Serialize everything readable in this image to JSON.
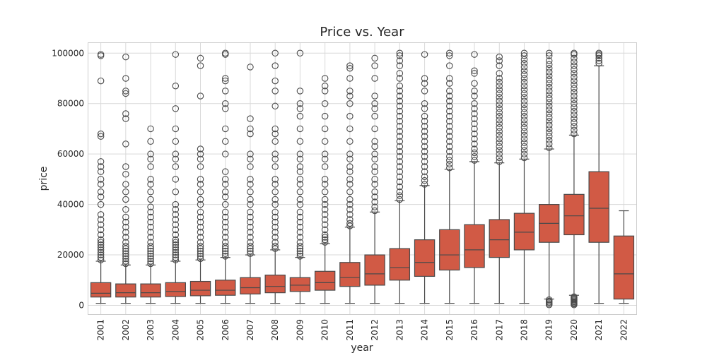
{
  "chart_data": {
    "type": "box",
    "title": "Price vs. Year",
    "xlabel": "year",
    "ylabel": "price",
    "ylim": [
      -3500,
      104000
    ],
    "yticks": [
      0,
      20000,
      40000,
      60000,
      80000,
      100000
    ],
    "grid": true,
    "color": "#d15a45",
    "line_color": "#4a4a4a",
    "categories": [
      "2001",
      "2002",
      "2003",
      "2004",
      "2005",
      "2006",
      "2007",
      "2008",
      "2009",
      "2010",
      "2011",
      "2012",
      "2013",
      "2014",
      "2015",
      "2016",
      "2017",
      "2018",
      "2019",
      "2020",
      "2021",
      "2022"
    ],
    "boxes": [
      {
        "year": "2001",
        "min": 800,
        "q1": 3300,
        "median": 4800,
        "q3": 9000,
        "max": 17500,
        "outliers": [
          18000,
          19000,
          20000,
          21000,
          22000,
          23000,
          24000,
          25000,
          26000,
          28000,
          30000,
          32000,
          34000,
          36000,
          40000,
          43000,
          45000,
          48000,
          50000,
          53000,
          55000,
          57000,
          67000,
          68000,
          89000,
          99000,
          99500
        ]
      },
      {
        "year": "2002",
        "min": 800,
        "q1": 3300,
        "median": 5000,
        "q3": 8500,
        "max": 16000,
        "outliers": [
          16500,
          17500,
          18500,
          19500,
          20500,
          21500,
          22500,
          23500,
          25000,
          27000,
          29000,
          31000,
          33000,
          35000,
          38000,
          42000,
          45000,
          48000,
          52000,
          55000,
          64000,
          74000,
          76000,
          84000,
          85000,
          90000,
          98500
        ]
      },
      {
        "year": "2003",
        "min": 800,
        "q1": 3300,
        "median": 5000,
        "q3": 8500,
        "max": 16000,
        "outliers": [
          16500,
          17500,
          18500,
          19500,
          20500,
          21500,
          22500,
          23500,
          25000,
          27000,
          29000,
          31000,
          33000,
          35000,
          37000,
          39000,
          42000,
          45000,
          48000,
          50000,
          55000,
          58000,
          60000,
          65000,
          70000
        ]
      },
      {
        "year": "2004",
        "min": 800,
        "q1": 3500,
        "median": 5500,
        "q3": 9000,
        "max": 17500,
        "outliers": [
          18000,
          19000,
          20000,
          21000,
          22000,
          23000,
          24000,
          25000,
          26000,
          28000,
          30000,
          32000,
          34000,
          36000,
          38000,
          40000,
          45000,
          50000,
          55000,
          58000,
          60000,
          65000,
          70000,
          78000,
          87000,
          99500
        ]
      },
      {
        "year": "2005",
        "min": 800,
        "q1": 3800,
        "median": 6000,
        "q3": 9500,
        "max": 18000,
        "outliers": [
          18500,
          19500,
          20500,
          21500,
          22500,
          23500,
          25000,
          27000,
          29000,
          31000,
          33000,
          35000,
          37000,
          40000,
          42000,
          45000,
          48000,
          50000,
          55000,
          58000,
          60000,
          62000,
          83000,
          95000,
          98000
        ]
      },
      {
        "year": "2006",
        "min": 800,
        "q1": 4000,
        "median": 6000,
        "q3": 10000,
        "max": 19000,
        "outliers": [
          19500,
          20500,
          21500,
          22500,
          23500,
          25000,
          27000,
          29000,
          31000,
          33000,
          35000,
          37000,
          40000,
          43000,
          45000,
          48000,
          50000,
          53000,
          60000,
          65000,
          70000,
          78000,
          80000,
          85000,
          89000,
          90000,
          99500,
          100000
        ]
      },
      {
        "year": "2007",
        "min": 800,
        "q1": 4500,
        "median": 7000,
        "q3": 11000,
        "max": 20000,
        "outliers": [
          20500,
          21500,
          22500,
          23500,
          25000,
          27000,
          29000,
          31000,
          33000,
          35000,
          37000,
          40000,
          42000,
          45000,
          48000,
          50000,
          55000,
          58000,
          60000,
          68000,
          70000,
          74000,
          94500
        ]
      },
      {
        "year": "2008",
        "min": 800,
        "q1": 5000,
        "median": 7500,
        "q3": 12000,
        "max": 22000,
        "outliers": [
          22500,
          23500,
          25000,
          27000,
          29000,
          31000,
          33000,
          35000,
          37000,
          40000,
          42000,
          45000,
          48000,
          50000,
          55000,
          58000,
          60000,
          65000,
          68000,
          70000,
          79000,
          85000,
          89000,
          95000,
          100000
        ]
      },
      {
        "year": "2009",
        "min": 800,
        "q1": 5500,
        "median": 8000,
        "q3": 11000,
        "max": 19000,
        "outliers": [
          19500,
          20500,
          21500,
          22500,
          23500,
          25000,
          27000,
          29000,
          31000,
          33000,
          35000,
          37000,
          40000,
          42000,
          45000,
          48000,
          50000,
          53000,
          55000,
          58000,
          60000,
          65000,
          70000,
          75000,
          78000,
          80000,
          85000,
          100000
        ]
      },
      {
        "year": "2010",
        "min": 800,
        "q1": 6000,
        "median": 9000,
        "q3": 13500,
        "max": 24500,
        "outliers": [
          25000,
          26000,
          27000,
          28000,
          30000,
          32000,
          34000,
          36000,
          38000,
          40000,
          42000,
          45000,
          48000,
          50000,
          55000,
          58000,
          60000,
          65000,
          70000,
          75000,
          80000,
          85000,
          87000,
          90000
        ]
      },
      {
        "year": "2011",
        "min": 800,
        "q1": 7500,
        "median": 11000,
        "q3": 17000,
        "max": 31000,
        "outliers": [
          31500,
          32500,
          34000,
          36000,
          38000,
          40000,
          42000,
          45000,
          48000,
          50000,
          53000,
          55000,
          58000,
          60000,
          65000,
          70000,
          75000,
          80000,
          83000,
          85000,
          90000,
          94000,
          95000
        ]
      },
      {
        "year": "2012",
        "min": 800,
        "q1": 8000,
        "median": 12500,
        "q3": 20000,
        "max": 37000,
        "outliers": [
          37500,
          39000,
          41000,
          43000,
          45000,
          48000,
          50000,
          53000,
          55000,
          58000,
          60000,
          63000,
          65000,
          70000,
          75000,
          78000,
          80000,
          83000,
          90000,
          95000,
          98000
        ]
      },
      {
        "year": "2013",
        "min": 800,
        "q1": 10000,
        "median": 15000,
        "q3": 22500,
        "max": 41500,
        "outliers": [
          42000,
          43500,
          45000,
          47000,
          49000,
          51000,
          53000,
          55000,
          57000,
          59000,
          61000,
          63000,
          65000,
          67000,
          69000,
          71000,
          73000,
          75000,
          77000,
          79000,
          81000,
          83000,
          85000,
          87000,
          90000,
          92000,
          95000,
          97000,
          99000,
          100000
        ]
      },
      {
        "year": "2014",
        "min": 800,
        "q1": 11500,
        "median": 17000,
        "q3": 26000,
        "max": 47500,
        "outliers": [
          48000,
          49500,
          51000,
          53000,
          55000,
          57000,
          59000,
          61000,
          63000,
          65000,
          67000,
          69000,
          71000,
          73000,
          75000,
          78000,
          80000,
          85000,
          88000,
          90000,
          99500
        ]
      },
      {
        "year": "2015",
        "min": 800,
        "q1": 14000,
        "median": 20000,
        "q3": 30000,
        "max": 54000,
        "outliers": [
          54500,
          56000,
          57500,
          59000,
          61000,
          63000,
          65000,
          67000,
          69000,
          71000,
          73000,
          75000,
          77000,
          79000,
          81000,
          83000,
          85000,
          88000,
          90000,
          95000,
          99000,
          100000
        ]
      },
      {
        "year": "2016",
        "min": 800,
        "q1": 15000,
        "median": 22000,
        "q3": 32000,
        "max": 57000,
        "outliers": [
          57500,
          59000,
          60500,
          62000,
          64000,
          66000,
          68000,
          70000,
          72000,
          74000,
          76000,
          78000,
          80000,
          83000,
          85000,
          88000,
          92000,
          93000,
          99500
        ]
      },
      {
        "year": "2017",
        "min": 800,
        "q1": 19000,
        "median": 26000,
        "q3": 34000,
        "max": 56500,
        "outliers": [
          57000,
          58500,
          60000,
          61500,
          63000,
          64500,
          66000,
          67500,
          69000,
          70500,
          72000,
          73500,
          75000,
          76500,
          78000,
          79500,
          81000,
          82500,
          84000,
          85500,
          87000,
          88500,
          90000,
          92000,
          95000,
          97000,
          98500
        ]
      },
      {
        "year": "2018",
        "min": 800,
        "q1": 22000,
        "median": 29000,
        "q3": 36500,
        "max": 58000,
        "outliers": [
          58500,
          60000,
          61500,
          63000,
          64500,
          66000,
          67500,
          69000,
          70500,
          72000,
          73500,
          75000,
          76500,
          78000,
          79500,
          81000,
          82500,
          84000,
          85500,
          87000,
          88500,
          90000,
          91500,
          93000,
          94500,
          96000,
          97500,
          99000,
          100000
        ]
      },
      {
        "year": "2019",
        "min": 2500,
        "q1": 25000,
        "median": 32500,
        "q3": 40000,
        "max": 62000,
        "outliers": [
          200,
          700,
          1200,
          1700,
          2200,
          62500,
          64000,
          65500,
          67000,
          68500,
          70000,
          71500,
          73000,
          74500,
          76000,
          77500,
          79000,
          80500,
          82000,
          83500,
          85000,
          86500,
          88000,
          89500,
          91000,
          92500,
          94000,
          95500,
          97000,
          99000,
          100000
        ]
      },
      {
        "year": "2020",
        "min": 4000,
        "q1": 28000,
        "median": 35500,
        "q3": 44000,
        "max": 67500,
        "outliers": [
          200,
          600,
          1000,
          1400,
          1800,
          2200,
          2600,
          3000,
          3400,
          68000,
          69500,
          71000,
          72500,
          74000,
          75500,
          77000,
          78500,
          80000,
          81500,
          83000,
          84500,
          86000,
          87500,
          89000,
          90500,
          92000,
          93500,
          95000,
          96500,
          98000,
          99500,
          100000
        ]
      },
      {
        "year": "2021",
        "min": 800,
        "q1": 25000,
        "median": 38500,
        "q3": 53000,
        "max": 95000,
        "outliers": [
          96000,
          97000,
          98000,
          99000,
          99500,
          100000
        ]
      },
      {
        "year": "2022",
        "min": 800,
        "q1": 2500,
        "median": 12500,
        "q3": 27500,
        "max": 37500,
        "outliers": []
      }
    ]
  }
}
